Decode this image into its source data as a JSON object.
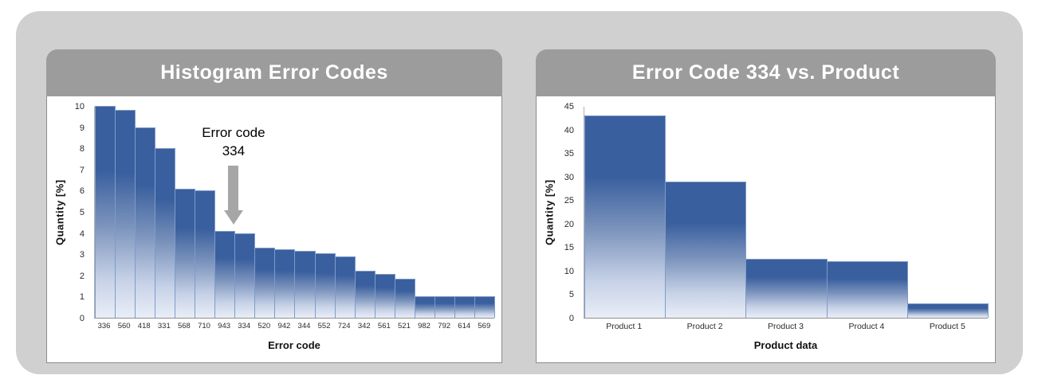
{
  "window": {
    "background": "#ffffff",
    "frame_color": "#d0d0d0"
  },
  "colors": {
    "card_header_bg": "#9c9c9c",
    "card_header_text": "#ffffff",
    "bar_top": "#395f9e",
    "bar_mid": "#7b93bc",
    "bar_light": "#c7d2e7",
    "bar_bottom": "#e9eef7",
    "bar_border": "#7f9bca",
    "axis_line": "#8f8f8f",
    "tick_text": "#2b2b2b",
    "annotation_arrow": "#a6a6a6"
  },
  "chart_data": [
    {
      "type": "bar",
      "title": "Histogram Error Codes",
      "categories": [
        "336",
        "560",
        "418",
        "331",
        "568",
        "710",
        "943",
        "334",
        "520",
        "942",
        "344",
        "552",
        "724",
        "342",
        "561",
        "521",
        "982",
        "792",
        "614",
        "569"
      ],
      "values": [
        10,
        9.8,
        9,
        8,
        6.1,
        6,
        4.1,
        4,
        3.3,
        3.25,
        3.15,
        3.05,
        2.9,
        2.2,
        2.05,
        1.85,
        1,
        1,
        1,
        1
      ],
      "xlabel": "Error code",
      "ylabel": "Quantity [%]",
      "ylim": [
        0,
        10
      ],
      "ytick_step": 1,
      "grid": false,
      "legend": "none",
      "bar_gap": 0,
      "annotation": {
        "text_lines": [
          "Error code",
          "334"
        ],
        "target_category": "334"
      }
    },
    {
      "type": "bar",
      "title": "Error Code 334 vs. Product",
      "categories": [
        "Product 1",
        "Product 2",
        "Product 3",
        "Product 4",
        "Product 5"
      ],
      "values": [
        43,
        29,
        12.5,
        12,
        3
      ],
      "xlabel": "Product data",
      "ylabel": "Quantity [%]",
      "ylim": [
        0,
        45
      ],
      "ytick_step": 5,
      "grid": false,
      "legend": "none",
      "bar_gap": 0
    }
  ]
}
